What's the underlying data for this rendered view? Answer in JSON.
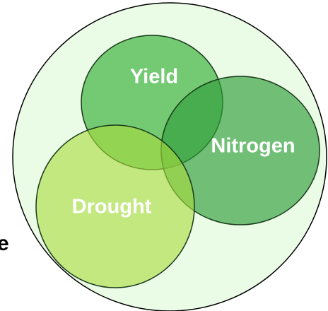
{
  "nodes": [
    {
      "label": "Yield"
    },
    {
      "label": "Nitrogen"
    },
    {
      "label": "Drought"
    }
  ],
  "edge_text": "e"
}
